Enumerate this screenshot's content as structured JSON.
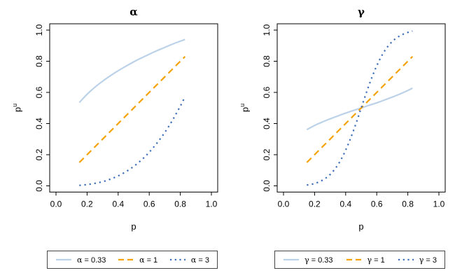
{
  "figure": {
    "background": "#ffffff",
    "axis_color": "#000000",
    "legend_border_color": "#444444"
  },
  "chart_data": [
    {
      "type": "line",
      "title_symbol": "α",
      "xlabel": "p",
      "ylabel_base": "p",
      "ylabel_sup": "u",
      "xlim": [
        0,
        1
      ],
      "ylim": [
        0,
        1
      ],
      "grid": "off",
      "legend_position": "below",
      "xtick_labels": [
        "0.0",
        "0.2",
        "0.4",
        "0.6",
        "0.8",
        "1.0"
      ],
      "xtick_values": [
        0,
        0.2,
        0.4,
        0.6,
        0.8,
        1.0
      ],
      "ytick_labels": [
        "0.0",
        "0.2",
        "0.4",
        "0.6",
        "0.8",
        "1.0"
      ],
      "ytick_values": [
        0,
        0.2,
        0.4,
        0.6,
        0.8,
        1.0
      ],
      "x": [
        0.15,
        0.2,
        0.25,
        0.3,
        0.35,
        0.4,
        0.45,
        0.5,
        0.55,
        0.6,
        0.65,
        0.7,
        0.75,
        0.8,
        0.83
      ],
      "series": [
        {
          "name": "α = 0.33",
          "symbol": "α",
          "value_text": "= 0.33",
          "linetype": "solid",
          "color": "#bcd2e8",
          "y": [
            0.535,
            0.588,
            0.633,
            0.672,
            0.707,
            0.739,
            0.768,
            0.796,
            0.821,
            0.845,
            0.868,
            0.889,
            0.91,
            0.929,
            0.94
          ]
        },
        {
          "name": "α = 1",
          "symbol": "α",
          "value_text": "= 1",
          "linetype": "dashed",
          "color": "#f4a206",
          "y": [
            0.15,
            0.2,
            0.25,
            0.3,
            0.35,
            0.4,
            0.45,
            0.5,
            0.55,
            0.6,
            0.65,
            0.7,
            0.75,
            0.8,
            0.83
          ]
        },
        {
          "name": "α = 3",
          "symbol": "α",
          "value_text": "= 3",
          "linetype": "dotted",
          "color": "#3d6fb8",
          "y": [
            0.003,
            0.008,
            0.016,
            0.027,
            0.043,
            0.064,
            0.091,
            0.125,
            0.166,
            0.216,
            0.275,
            0.343,
            0.422,
            0.512,
            0.572
          ]
        }
      ]
    },
    {
      "type": "line",
      "title_symbol": "γ",
      "xlabel": "p",
      "ylabel_base": "p",
      "ylabel_sup": "u",
      "xlim": [
        0,
        1
      ],
      "ylim": [
        0,
        1
      ],
      "grid": "off",
      "legend_position": "below",
      "xtick_labels": [
        "0.0",
        "0.2",
        "0.4",
        "0.6",
        "0.8",
        "1.0"
      ],
      "xtick_values": [
        0,
        0.2,
        0.4,
        0.6,
        0.8,
        1.0
      ],
      "ytick_labels": [
        "0.0",
        "0.2",
        "0.4",
        "0.6",
        "0.8",
        "1.0"
      ],
      "ytick_values": [
        0,
        0.2,
        0.4,
        0.6,
        0.8,
        1.0
      ],
      "x": [
        0.15,
        0.2,
        0.25,
        0.3,
        0.35,
        0.4,
        0.45,
        0.5,
        0.55,
        0.6,
        0.65,
        0.7,
        0.75,
        0.8,
        0.83
      ],
      "series": [
        {
          "name": "γ = 0.33",
          "symbol": "γ",
          "value_text": "= 0.33",
          "linetype": "solid",
          "color": "#bcd2e8",
          "y": [
            0.361,
            0.388,
            0.41,
            0.43,
            0.449,
            0.467,
            0.484,
            0.5,
            0.517,
            0.533,
            0.551,
            0.57,
            0.59,
            0.612,
            0.628
          ]
        },
        {
          "name": "γ = 1",
          "symbol": "γ",
          "value_text": "= 1",
          "linetype": "dashed",
          "color": "#f4a206",
          "y": [
            0.15,
            0.2,
            0.25,
            0.3,
            0.35,
            0.4,
            0.45,
            0.5,
            0.55,
            0.6,
            0.65,
            0.7,
            0.75,
            0.8,
            0.83
          ]
        },
        {
          "name": "γ = 3",
          "symbol": "γ",
          "value_text": "= 3",
          "linetype": "dotted",
          "color": "#3d6fb8",
          "y": [
            0.005,
            0.015,
            0.036,
            0.073,
            0.135,
            0.229,
            0.354,
            0.5,
            0.646,
            0.771,
            0.865,
            0.927,
            0.964,
            0.985,
            0.994
          ]
        }
      ]
    }
  ]
}
